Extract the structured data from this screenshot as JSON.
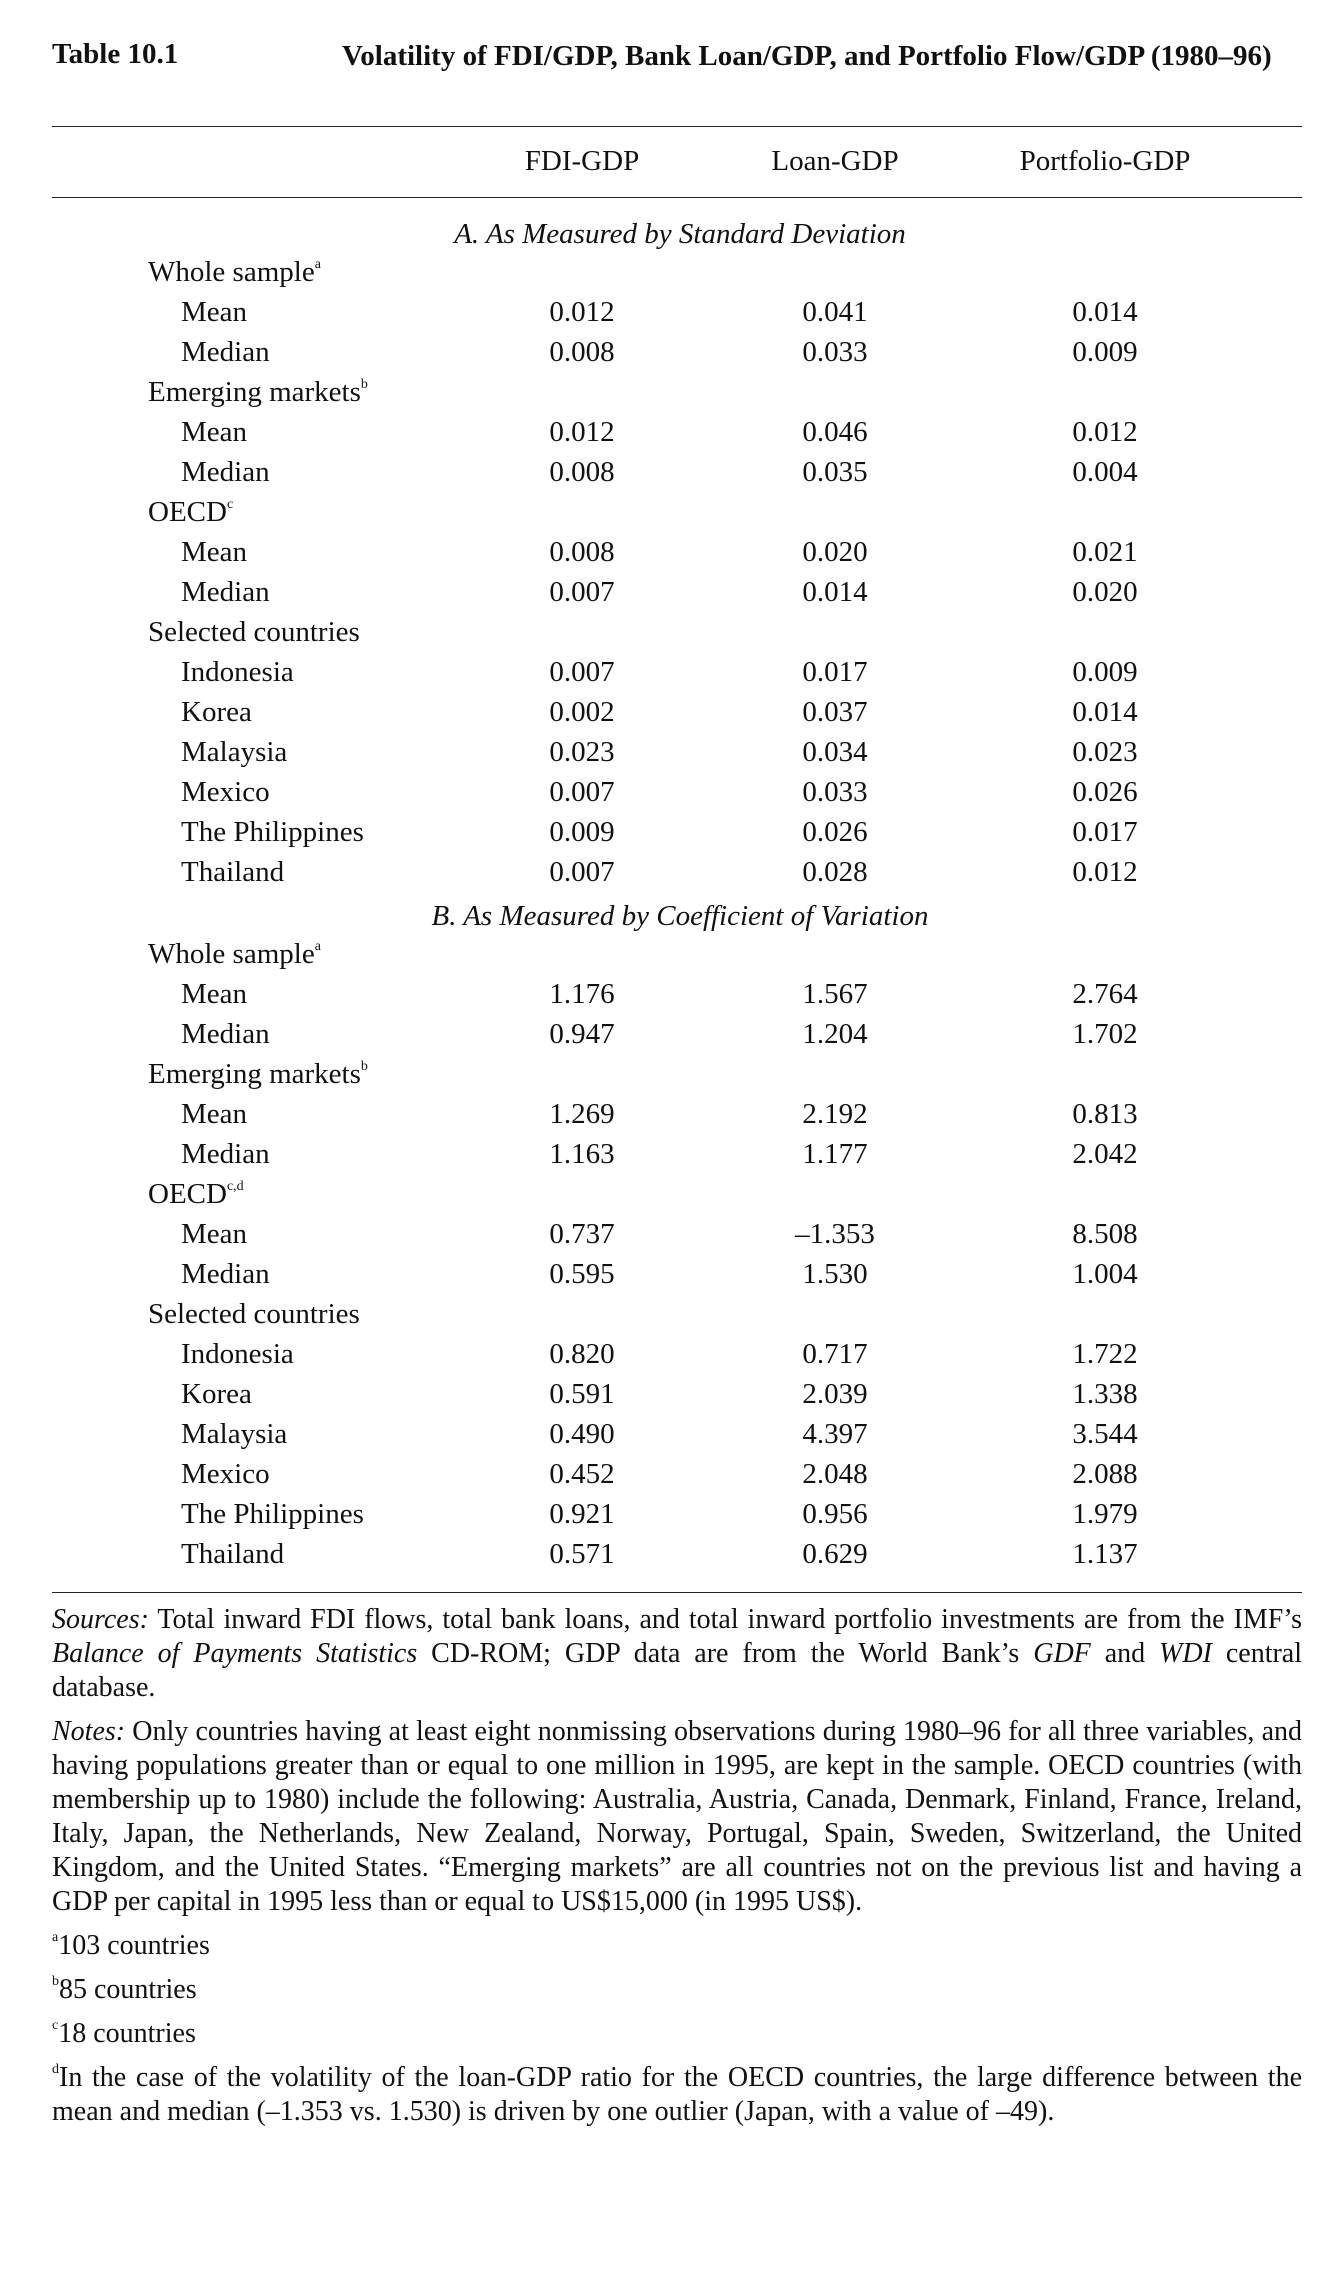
{
  "table": {
    "number": "Table 10.1",
    "title": "Volatility of FDI/GDP, Bank Loan/GDP, and Portfolio Flow/GDP (1980–96)",
    "columns": [
      "FDI-GDP",
      "Loan-GDP",
      "Portfolio-GDP"
    ]
  },
  "panel_a": {
    "title": "A. As Measured by Standard Deviation",
    "groups": [
      {
        "label": "Whole sample",
        "sup": "a",
        "rows": [
          {
            "label": "Mean",
            "values": [
              "0.012",
              "0.041",
              "0.014"
            ]
          },
          {
            "label": "Median",
            "values": [
              "0.008",
              "0.033",
              "0.009"
            ]
          }
        ]
      },
      {
        "label": "Emerging markets",
        "sup": "b",
        "rows": [
          {
            "label": "Mean",
            "values": [
              "0.012",
              "0.046",
              "0.012"
            ]
          },
          {
            "label": "Median",
            "values": [
              "0.008",
              "0.035",
              "0.004"
            ]
          }
        ]
      },
      {
        "label": "OECD",
        "sup": "c",
        "rows": [
          {
            "label": "Mean",
            "values": [
              "0.008",
              "0.020",
              "0.021"
            ]
          },
          {
            "label": "Median",
            "values": [
              "0.007",
              "0.014",
              "0.020"
            ]
          }
        ]
      },
      {
        "label": "Selected countries",
        "sup": "",
        "rows": [
          {
            "label": "Indonesia",
            "values": [
              "0.007",
              "0.017",
              "0.009"
            ]
          },
          {
            "label": "Korea",
            "values": [
              "0.002",
              "0.037",
              "0.014"
            ]
          },
          {
            "label": "Malaysia",
            "values": [
              "0.023",
              "0.034",
              "0.023"
            ]
          },
          {
            "label": "Mexico",
            "values": [
              "0.007",
              "0.033",
              "0.026"
            ]
          },
          {
            "label": "The Philippines",
            "values": [
              "0.009",
              "0.026",
              "0.017"
            ]
          },
          {
            "label": "Thailand",
            "values": [
              "0.007",
              "0.028",
              "0.012"
            ]
          }
        ]
      }
    ]
  },
  "panel_b": {
    "title": "B. As Measured by Coefficient of Variation",
    "groups": [
      {
        "label": "Whole sample",
        "sup": "a",
        "rows": [
          {
            "label": "Mean",
            "values": [
              "1.176",
              "1.567",
              "2.764"
            ]
          },
          {
            "label": "Median",
            "values": [
              "0.947",
              "1.204",
              "1.702"
            ]
          }
        ]
      },
      {
        "label": "Emerging markets",
        "sup": "b",
        "rows": [
          {
            "label": "Mean",
            "values": [
              "1.269",
              "2.192",
              "0.813"
            ]
          },
          {
            "label": "Median",
            "values": [
              "1.163",
              "1.177",
              "2.042"
            ]
          }
        ]
      },
      {
        "label": "OECD",
        "sup": "c,d",
        "rows": [
          {
            "label": "Mean",
            "values": [
              "0.737",
              "–1.353",
              "8.508"
            ]
          },
          {
            "label": "Median",
            "values": [
              "0.595",
              "1.530",
              "1.004"
            ]
          }
        ]
      },
      {
        "label": "Selected countries",
        "sup": "",
        "rows": [
          {
            "label": "Indonesia",
            "values": [
              "0.820",
              "0.717",
              "1.722"
            ]
          },
          {
            "label": "Korea",
            "values": [
              "0.591",
              "2.039",
              "1.338"
            ]
          },
          {
            "label": "Malaysia",
            "values": [
              "0.490",
              "4.397",
              "3.544"
            ]
          },
          {
            "label": "Mexico",
            "values": [
              "0.452",
              "2.048",
              "2.088"
            ]
          },
          {
            "label": "The Philippines",
            "values": [
              "0.921",
              "0.956",
              "1.979"
            ]
          },
          {
            "label": "Thailand",
            "values": [
              "0.571",
              "0.629",
              "1.137"
            ]
          }
        ]
      }
    ]
  },
  "notes": {
    "sources": [
      {
        "t": "Sources:",
        "i": true
      },
      {
        "t": " Total inward FDI flows, total bank loans, and total inward portfolio investments are from the IMF’s ",
        "i": false
      },
      {
        "t": "Balance of Payments Statistics",
        "i": true
      },
      {
        "t": " CD-ROM; GDP data are from the World Bank’s ",
        "i": false
      },
      {
        "t": "GDF",
        "i": true
      },
      {
        "t": " and ",
        "i": false
      },
      {
        "t": "WDI",
        "i": true
      },
      {
        "t": " central database.",
        "i": false
      }
    ],
    "notes": [
      {
        "t": "Notes:",
        "i": true
      },
      {
        "t": " Only countries having at least eight nonmissing observations during 1980–96 for all three variables, and having populations greater than or equal to one million in 1995, are kept in the sample. OECD countries (with membership up to 1980) include the following: Australia, Austria, Canada, Denmark, Finland, France, Ireland, Italy, Japan, the Netherlands, New Zealand, Norway, Portugal, Spain, Sweden, Switzerland, the United Kingdom, and the United States. “Emerging markets” are all countries not on the previous list and having a GDP per capital in 1995 less than or equal to US$15,000 (in 1995 US$).",
        "i": false
      }
    ],
    "footnotes": [
      {
        "mark": "a",
        "text": "103 countries"
      },
      {
        "mark": "b",
        "text": "85 countries"
      },
      {
        "mark": "c",
        "text": "18 countries"
      },
      {
        "mark": "d",
        "text": "In the case of the volatility of the loan-GDP ratio for the OECD countries, the large difference between the mean and median (–1.353 vs. 1.530) is driven by one outlier (Japan, with a value of –49)."
      }
    ]
  }
}
